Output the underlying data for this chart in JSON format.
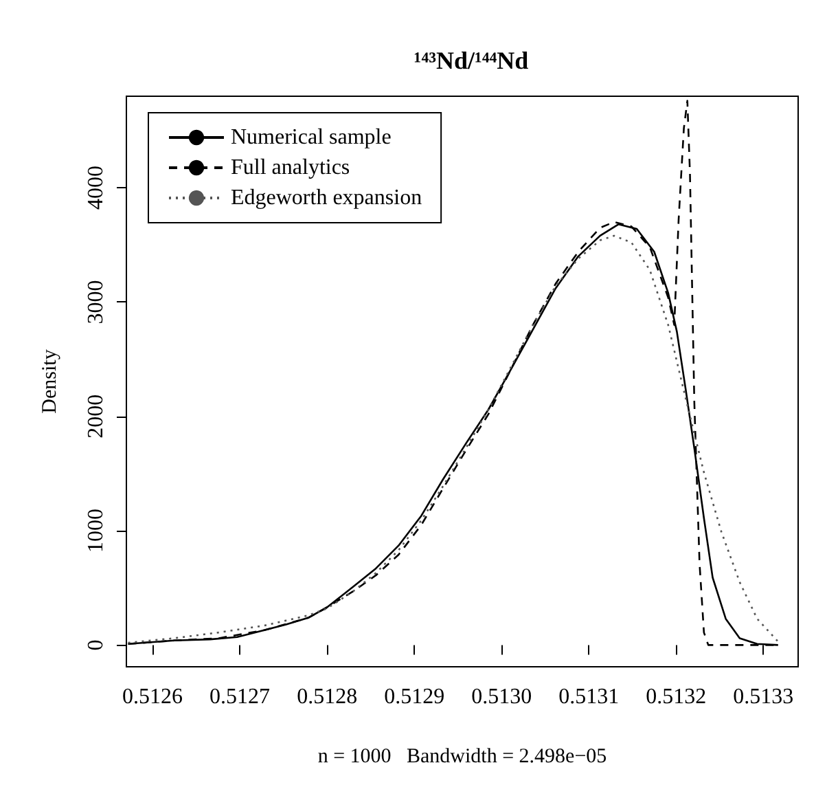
{
  "chart_data": {
    "type": "line",
    "title": "¹⁴³Nd/¹⁴⁴Nd",
    "xlabel": "n = 1000   Bandwidth = 2.498e−05",
    "ylabel": "Density",
    "xlim": [
      0.51257,
      0.51334
    ],
    "ylim": [
      -190,
      4800
    ],
    "xticks": [
      0.5126,
      0.5127,
      0.5128,
      0.5129,
      {
        "value": 0.513,
        "label": "0.5130"
      },
      0.5131,
      0.5132,
      0.5133
    ],
    "yticks": [
      0,
      1000,
      2000,
      3000,
      4000
    ],
    "legend": "top left",
    "series": [
      {
        "name": "Numerical sample",
        "color": "#000000",
        "line_style": "solid",
        "x": [
          0.512572,
          0.512625,
          0.512666,
          0.512697,
          0.512728,
          0.512753,
          0.512779,
          0.5128,
          0.51283,
          0.512856,
          0.512882,
          0.512908,
          0.512933,
          0.512959,
          0.512985,
          0.51301,
          0.513036,
          0.513062,
          0.513088,
          0.513113,
          0.513134,
          0.513155,
          0.513175,
          0.513191,
          0.513201,
          0.513211,
          0.513221,
          0.513232,
          0.513242,
          0.513257,
          0.513273,
          0.513293,
          0.513317
        ],
        "values": [
          10,
          40,
          50,
          70,
          130,
          180,
          240,
          330,
          510,
          670,
          870,
          1130,
          1450,
          1760,
          2060,
          2400,
          2760,
          3120,
          3400,
          3580,
          3680,
          3640,
          3440,
          3080,
          2740,
          2240,
          1720,
          1110,
          590,
          230,
          60,
          10,
          0
        ]
      },
      {
        "name": "Full analytics",
        "color": "#000000",
        "line_style": "dashed",
        "x": [
          0.512572,
          0.512625,
          0.512676,
          0.512728,
          0.512779,
          0.5128,
          0.51283,
          0.512856,
          0.512882,
          0.512908,
          0.512933,
          0.512959,
          0.512985,
          0.51301,
          0.513036,
          0.513062,
          0.513088,
          0.513113,
          0.513129,
          0.513149,
          0.51317,
          0.513191,
          0.513198,
          0.513203,
          0.513209,
          0.513213,
          0.513216,
          0.513221,
          0.513227,
          0.513232,
          0.513237,
          0.513263,
          0.513317
        ],
        "values": [
          10,
          40,
          60,
          130,
          240,
          330,
          470,
          610,
          790,
          1050,
          1370,
          1700,
          2020,
          2400,
          2800,
          3160,
          3440,
          3650,
          3700,
          3660,
          3480,
          3040,
          2800,
          3720,
          4520,
          4760,
          4120,
          2120,
          710,
          110,
          0,
          0,
          0
        ]
      },
      {
        "name": "Edgeworth expansion",
        "color": "#555555",
        "line_style": "dotted",
        "x": [
          0.512572,
          0.512625,
          0.512676,
          0.512728,
          0.512779,
          0.5128,
          0.51283,
          0.512856,
          0.512882,
          0.512908,
          0.512933,
          0.512959,
          0.512985,
          0.51301,
          0.513036,
          0.513062,
          0.513088,
          0.513113,
          0.513129,
          0.513149,
          0.51317,
          0.513191,
          0.513211,
          0.513232,
          0.513252,
          0.513273,
          0.513293,
          0.513317
        ],
        "values": [
          20,
          60,
          110,
          170,
          260,
          320,
          470,
          630,
          830,
          1090,
          1390,
          1720,
          2060,
          2420,
          2800,
          3140,
          3380,
          3540,
          3580,
          3520,
          3280,
          2800,
          2160,
          1510,
          990,
          550,
          230,
          30
        ]
      }
    ]
  }
}
